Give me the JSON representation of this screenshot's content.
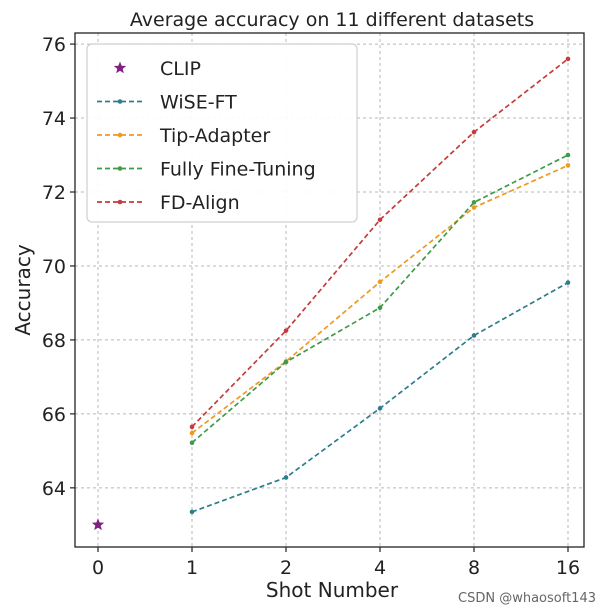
{
  "chart_data": {
    "type": "line",
    "title": "Average accuracy on 11 different datasets",
    "xlabel": "Shot Number",
    "ylabel": "Accuracy",
    "categories": [
      "0",
      "1",
      "2",
      "4",
      "8",
      "16"
    ],
    "ylim": [
      62.4,
      76.3
    ],
    "yticks": [
      64,
      66,
      68,
      70,
      72,
      74,
      76
    ],
    "grid": true,
    "legend_position": "top-left",
    "series": [
      {
        "name": "CLIP",
        "marker": "star",
        "color": "#7f1f7f",
        "values": [
          63.0,
          null,
          null,
          null,
          null,
          null
        ]
      },
      {
        "name": "WiSE-FT",
        "marker": "dot",
        "color": "#2e7d8c",
        "values": [
          null,
          63.35,
          64.28,
          66.15,
          68.12,
          69.55
        ]
      },
      {
        "name": "Tip-Adapter",
        "marker": "dot",
        "color": "#ee9922",
        "values": [
          null,
          65.48,
          67.42,
          69.57,
          71.58,
          72.72
        ]
      },
      {
        "name": "Fully Fine-Tuning",
        "marker": "dot",
        "color": "#3f9a4a",
        "values": [
          null,
          65.22,
          67.4,
          68.87,
          71.72,
          73.0
        ]
      },
      {
        "name": "FD-Align",
        "marker": "dot",
        "color": "#c43c3c",
        "values": [
          null,
          65.65,
          68.25,
          71.25,
          73.62,
          75.6
        ]
      }
    ]
  },
  "watermark": "CSDN @whaosoft143"
}
